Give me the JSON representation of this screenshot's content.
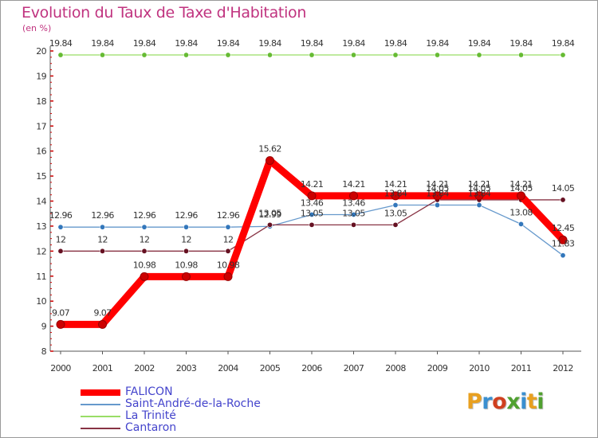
{
  "chart_data": {
    "type": "line",
    "title": "Evolution du Taux de Taxe d'Habitation",
    "ylabel": "(en %)",
    "xlabel": "",
    "categories": [
      "2000",
      "2001",
      "2002",
      "2003",
      "2004",
      "2005",
      "2006",
      "2007",
      "2008",
      "2009",
      "2010",
      "2011",
      "2012"
    ],
    "ylim": [
      8,
      20
    ],
    "yticks": [
      8,
      9,
      10,
      11,
      12,
      13,
      14,
      15,
      16,
      17,
      18,
      19,
      20
    ],
    "grid": false,
    "legend_position": "bottom-left",
    "series": [
      {
        "name": "FALICON",
        "color": "#ff0000",
        "marker_color": "#cc0000",
        "values": [
          9.07,
          9.07,
          10.98,
          10.98,
          10.98,
          15.62,
          14.21,
          14.21,
          14.21,
          14.21,
          14.21,
          14.21,
          12.45
        ],
        "labels": [
          "9.07",
          "9.07",
          "10.98",
          "10.98",
          "10.98",
          "15.62",
          "14.21",
          "14.21",
          "14.21",
          "14.21",
          "14.21",
          "14.21",
          "12.45"
        ]
      },
      {
        "name": "Saint-André-de-la-Roche",
        "color": "#6699cc",
        "marker_color": "#3377bb",
        "values": [
          12.96,
          12.96,
          12.96,
          12.96,
          12.96,
          12.99,
          13.46,
          13.46,
          13.84,
          13.84,
          13.84,
          13.08,
          11.83
        ],
        "labels": [
          "12.96",
          "12.96",
          "12.96",
          "12.96",
          "12.96",
          "12.99",
          "13.46",
          "13.46",
          "13.84",
          "13.84",
          "13.84",
          "13.08",
          "11.83"
        ]
      },
      {
        "name": "La Trinité",
        "color": "#99dd66",
        "marker_color": "#66bb33",
        "values": [
          19.84,
          19.84,
          19.84,
          19.84,
          19.84,
          19.84,
          19.84,
          19.84,
          19.84,
          19.84,
          19.84,
          19.84,
          19.84
        ],
        "labels": [
          "19.84",
          "19.84",
          "19.84",
          "19.84",
          "19.84",
          "19.84",
          "19.84",
          "19.84",
          "19.84",
          "19.84",
          "19.84",
          "19.84",
          "19.84"
        ]
      },
      {
        "name": "Cantaron",
        "color": "#883344",
        "marker_color": "#661122",
        "values": [
          12,
          12,
          12,
          12,
          12,
          13.05,
          13.05,
          13.05,
          13.05,
          14.05,
          14.05,
          14.05,
          14.05
        ],
        "labels": [
          "12",
          "12",
          "12",
          "12",
          "12",
          "13.05",
          "13.05",
          "13.05",
          "13.05",
          "14.05",
          "14.05",
          "14.05",
          "14.05"
        ]
      }
    ]
  },
  "legend": {
    "items": [
      {
        "label": "FALICON",
        "color": "#ff0000",
        "thick": true
      },
      {
        "label": "Saint-André-de-la-Roche",
        "color": "#6699cc",
        "thick": false
      },
      {
        "label": "La Trinité",
        "color": "#99dd66",
        "thick": false
      },
      {
        "label": "Cantaron",
        "color": "#883344",
        "thick": false
      }
    ]
  },
  "logo": {
    "letters": [
      "P",
      "r",
      "o",
      "x",
      "i",
      "t",
      "i"
    ],
    "colors": [
      "#e8a020",
      "#3a8fd0",
      "#d04020",
      "#50a030",
      "#3a8fd0",
      "#e8a020",
      "#50a030"
    ]
  }
}
